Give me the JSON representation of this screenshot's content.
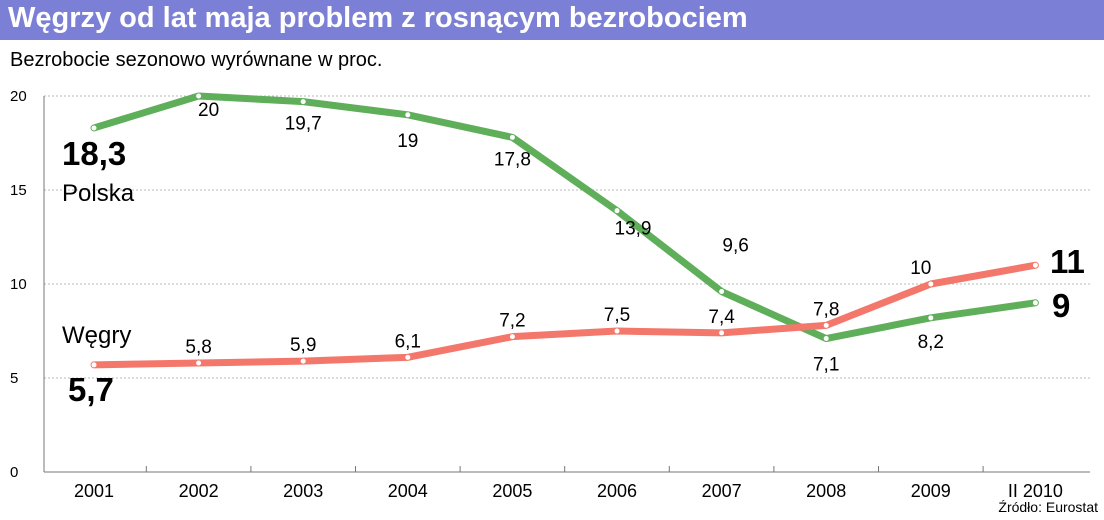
{
  "chart_data": {
    "type": "line",
    "title": "Węgrzy od lat maja problem z rosnącym bezrobociem",
    "subtitle": "Bezrobocie sezonowo wyrównane w proc.",
    "source": "Źródło: Eurostat",
    "categories": [
      "2001",
      "2002",
      "2003",
      "2004",
      "2005",
      "2006",
      "2007",
      "2008",
      "2009",
      "II 2010"
    ],
    "ylim": [
      0,
      20
    ],
    "yticks": [
      "0",
      "5",
      "10",
      "15",
      "20"
    ],
    "grid": true,
    "series": [
      {
        "name": "Polska",
        "color": "#5fae5a",
        "values": [
          18.3,
          20,
          19.7,
          19,
          17.8,
          13.9,
          9.6,
          7.1,
          8.2,
          9
        ],
        "labels": [
          "18,3",
          "20",
          "19,7",
          "19",
          "17,8",
          "13,9",
          "9,6",
          "7,1",
          "8,2",
          "9"
        ]
      },
      {
        "name": "Węgry",
        "color": "#f4776b",
        "values": [
          5.7,
          5.8,
          5.9,
          6.1,
          7.2,
          7.5,
          7.4,
          7.8,
          10,
          11
        ],
        "labels": [
          "5,7",
          "5,8",
          "5,9",
          "6,1",
          "7,2",
          "7,5",
          "7,4",
          "7,8",
          "10",
          "11"
        ]
      }
    ]
  }
}
